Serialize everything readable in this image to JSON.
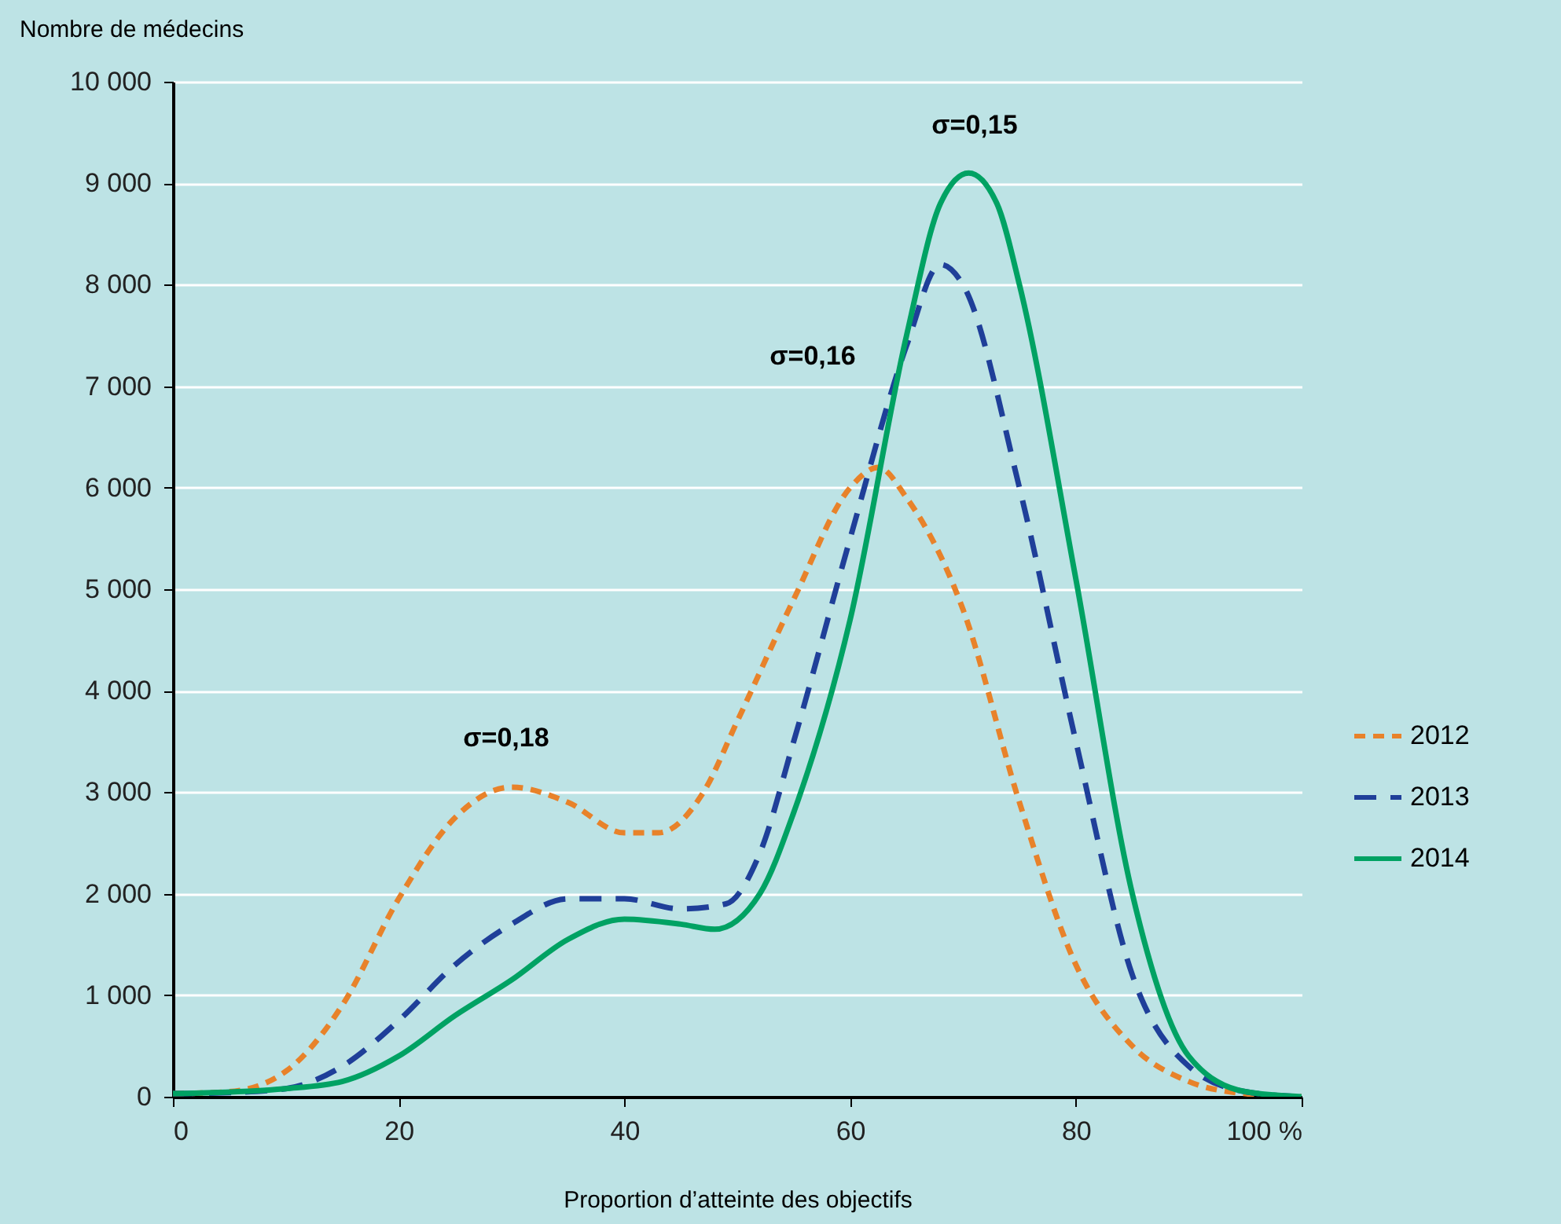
{
  "chart_data": {
    "type": "line",
    "xlabel": "Proportion d’atteinte des objectifs",
    "ylabel": "Nombre de médecins",
    "xlim": [
      0,
      100
    ],
    "xticks": [
      0,
      20,
      40,
      60,
      80,
      {
        "value": 100,
        "label": "100 %"
      }
    ],
    "ylim": [
      0,
      10000
    ],
    "yticks": [
      {
        "value": 0,
        "label": "0"
      },
      {
        "value": 1000,
        "label": "1 000"
      },
      {
        "value": 2000,
        "label": "2 000"
      },
      {
        "value": 3000,
        "label": "3 000"
      },
      {
        "value": 4000,
        "label": "4 000"
      },
      {
        "value": 5000,
        "label": "5 000"
      },
      {
        "value": 6000,
        "label": "6 000"
      },
      {
        "value": 7000,
        "label": "7 000"
      },
      {
        "value": 8000,
        "label": "8 000"
      },
      {
        "value": 9000,
        "label": "9 000"
      },
      {
        "value": 10000,
        "label": "10 000"
      }
    ],
    "grid": "y",
    "legend": "right",
    "marker": "none",
    "series": [
      {
        "name": "2012",
        "color": "#e8822a",
        "line_style": "dotted",
        "x": [
          0,
          5,
          10,
          15,
          20,
          25,
          30,
          35,
          40,
          43,
          47,
          50,
          55,
          60,
          62.5,
          65,
          70,
          75,
          80,
          85,
          90,
          95,
          100
        ],
        "values": [
          30,
          50,
          250,
          900,
          1950,
          2750,
          3050,
          2900,
          2600,
          2600,
          3000,
          3700,
          4900,
          6000,
          6200,
          5900,
          4800,
          2900,
          1300,
          500,
          150,
          30,
          0
        ]
      },
      {
        "name": "2013",
        "color": "#1f3f99",
        "line_style": "dashed",
        "x": [
          0,
          5,
          10,
          15,
          20,
          25,
          30,
          35,
          40,
          45,
          49,
          52,
          55,
          60,
          65,
          68,
          70,
          75,
          80,
          85,
          90,
          95,
          100
        ],
        "values": [
          30,
          40,
          80,
          300,
          750,
          1300,
          1700,
          1950,
          1950,
          1850,
          1900,
          2400,
          3500,
          5500,
          7400,
          8200,
          8000,
          6000,
          3500,
          1200,
          300,
          50,
          0
        ]
      },
      {
        "name": "2014",
        "color": "#00a263",
        "line_style": "solid",
        "x": [
          0,
          10,
          15,
          20,
          25,
          30,
          35,
          40,
          45,
          48,
          52,
          55,
          60,
          65,
          68,
          70.5,
          73,
          75,
          80,
          85,
          90,
          95,
          100
        ],
        "values": [
          30,
          80,
          150,
          400,
          800,
          1150,
          1550,
          1750,
          1700,
          1650,
          2000,
          2800,
          4700,
          7500,
          8800,
          9100,
          8800,
          8000,
          5100,
          2000,
          400,
          50,
          0
        ]
      }
    ],
    "annotations": [
      "σ=0,18",
      "σ=0,16",
      "σ=0,15"
    ]
  }
}
